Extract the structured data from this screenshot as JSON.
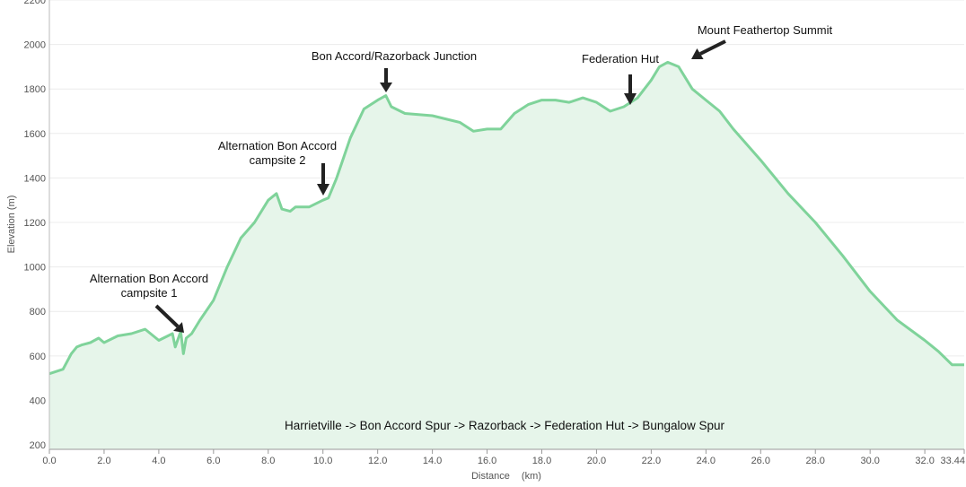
{
  "chart_data": {
    "type": "area",
    "title": "",
    "xlabel": "Distance",
    "xunit": "(km)",
    "ylabel": "Elevation (m)",
    "xlim": [
      0,
      33.44
    ],
    "ylim": [
      180,
      2200
    ],
    "yticks": [
      "200",
      "400",
      "600",
      "800",
      "1000",
      "1200",
      "1400",
      "1600",
      "1800",
      "2000",
      "2200"
    ],
    "xticks": [
      "0.0",
      "2.0",
      "4.0",
      "6.0",
      "8.0",
      "10.0",
      "12.0",
      "14.0",
      "16.0",
      "18.0",
      "20.0",
      "22.0",
      "24.0",
      "26.0",
      "28.0",
      "30.0",
      "32.0",
      "33.44"
    ],
    "grid": true,
    "line_color": "#7fd39a",
    "fill_color": "#e6f5ea",
    "route_label": "Harrietville -> Bon Accord Spur -> Razorback -> Federation Hut -> Bungalow Spur",
    "series": [
      {
        "x": [
          0,
          0.5,
          0.8,
          1.0,
          1.2,
          1.5,
          1.8,
          2.0,
          2.5,
          3.0,
          3.5,
          4.0,
          4.5,
          4.6,
          4.8,
          4.9,
          5.0,
          5.2,
          5.5,
          6.0,
          6.5,
          7.0,
          7.5,
          8.0,
          8.3,
          8.5,
          8.8,
          9.0,
          9.5,
          10.0,
          10.2,
          10.5,
          11.0,
          11.5,
          12.0,
          12.3,
          12.5,
          13.0,
          14.0,
          15.0,
          15.5,
          16.0,
          16.5,
          17.0,
          17.5,
          18.0,
          18.5,
          19.0,
          19.5,
          20.0,
          20.5,
          21.0,
          21.5,
          22.0,
          22.3,
          22.6,
          23.0,
          23.5,
          24.0,
          24.5,
          25.0,
          26.0,
          27.0,
          28.0,
          29.0,
          30.0,
          31.0,
          32.0,
          32.5,
          33.0,
          33.44
        ],
        "y": [
          520,
          540,
          610,
          640,
          650,
          660,
          680,
          660,
          690,
          700,
          720,
          670,
          700,
          640,
          710,
          610,
          680,
          700,
          760,
          850,
          1000,
          1130,
          1200,
          1300,
          1330,
          1260,
          1250,
          1270,
          1270,
          1300,
          1310,
          1400,
          1580,
          1710,
          1750,
          1770,
          1720,
          1690,
          1680,
          1650,
          1610,
          1620,
          1620,
          1690,
          1730,
          1750,
          1750,
          1740,
          1760,
          1740,
          1700,
          1720,
          1760,
          1840,
          1900,
          1920,
          1900,
          1800,
          1750,
          1700,
          1620,
          1480,
          1330,
          1200,
          1050,
          890,
          760,
          670,
          620,
          560,
          560
        ]
      }
    ],
    "annotations": [
      {
        "label": "Alternation Bon Accord campsite 1",
        "lines": [
          "Alternation Bon Accord",
          "campsite 1"
        ],
        "x": 4.9,
        "y": 680
      },
      {
        "label": "Alternation Bon Accord campsite 2",
        "lines": [
          "Alternation Bon Accord",
          "campsite 2"
        ],
        "x": 9.9,
        "y": 1290
      },
      {
        "label": "Bon Accord/Razorback Junction",
        "lines": [
          "Bon Accord/Razorback Junction"
        ],
        "x": 12.3,
        "y": 1790
      },
      {
        "label": "Federation Hut",
        "lines": [
          "Federation Hut"
        ],
        "x": 21.2,
        "y": 1730
      },
      {
        "label": "Mount Feathertop Summit",
        "lines": [
          "Mount Feathertop Summit"
        ],
        "x": 23.2,
        "y": 1940
      }
    ]
  }
}
